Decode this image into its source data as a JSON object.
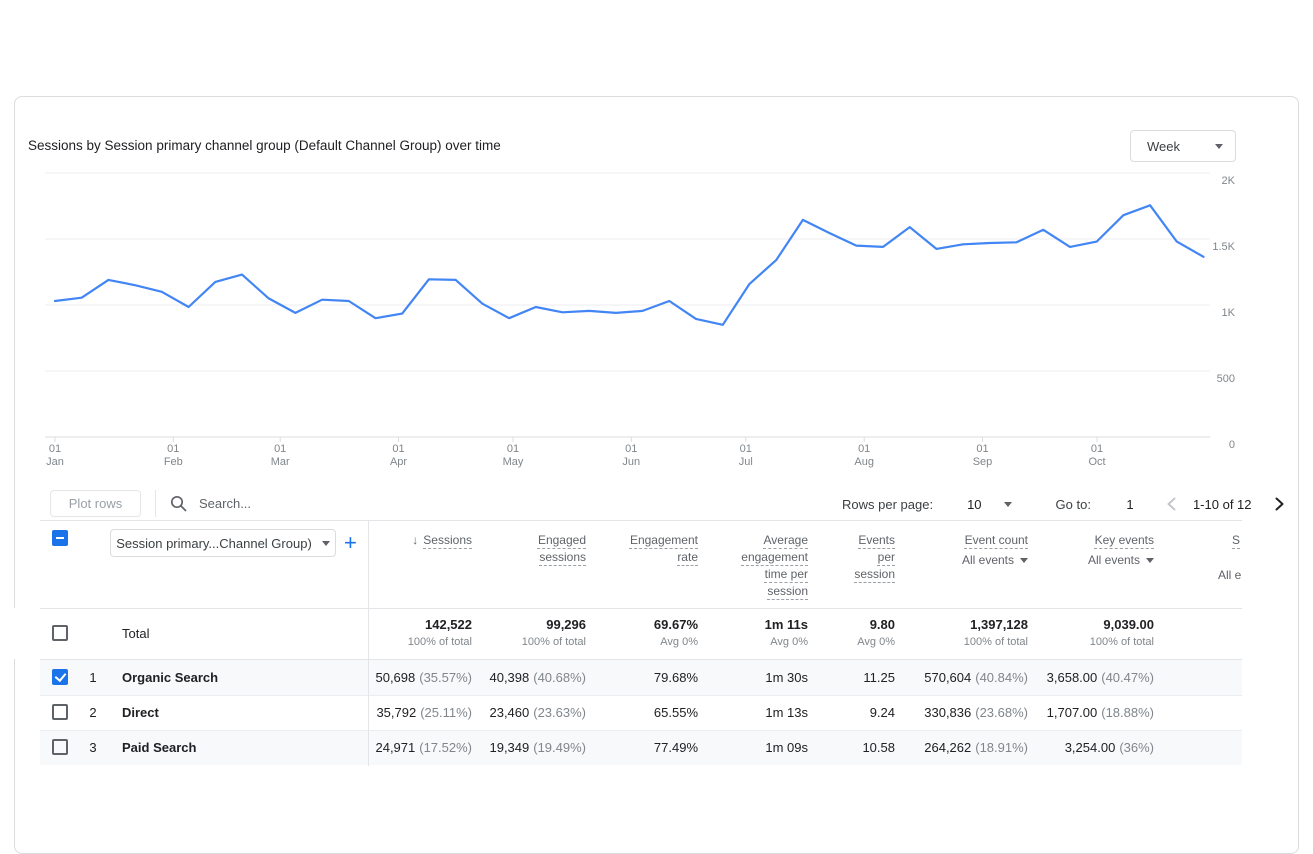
{
  "header": {
    "title": "Sessions by Session primary channel group (Default Channel Group) over time",
    "interval_value": "Week"
  },
  "chart_data": {
    "type": "line",
    "title": "Sessions by Session primary channel group (Default Channel Group) over time",
    "interval": "Week",
    "legend": "none",
    "grid": true,
    "ylim": [
      0,
      2000
    ],
    "yticks": [
      {
        "value": 0,
        "label": "0"
      },
      {
        "value": 500,
        "label": "500"
      },
      {
        "value": 1000,
        "label": "1K"
      },
      {
        "value": 1500,
        "label": "1.5K"
      },
      {
        "value": 2000,
        "label": "2K"
      }
    ],
    "x_ticks": [
      {
        "line1": "01",
        "line2": "Jan"
      },
      {
        "line1": "01",
        "line2": "Feb"
      },
      {
        "line1": "01",
        "line2": "Mar"
      },
      {
        "line1": "01",
        "line2": "Apr"
      },
      {
        "line1": "01",
        "line2": "May"
      },
      {
        "line1": "01",
        "line2": "Jun"
      },
      {
        "line1": "01",
        "line2": "Jul"
      },
      {
        "line1": "01",
        "line2": "Aug"
      },
      {
        "line1": "01",
        "line2": "Sep"
      },
      {
        "line1": "01",
        "line2": "Oct"
      }
    ],
    "series": [
      {
        "name": "Sessions",
        "color": "#4285f4",
        "x_unit": "week",
        "values": [
          1030,
          1055,
          1190,
          1150,
          1100,
          985,
          1175,
          1230,
          1050,
          940,
          1040,
          1030,
          900,
          935,
          1195,
          1190,
          1010,
          900,
          985,
          945,
          955,
          940,
          955,
          1030,
          895,
          850,
          1160,
          1340,
          1645,
          1545,
          1450,
          1440,
          1590,
          1425,
          1460,
          1470,
          1475,
          1570,
          1440,
          1480,
          1680,
          1755,
          1480,
          1365
        ]
      }
    ]
  },
  "toolbar": {
    "plot_rows": "Plot rows",
    "search_placeholder": "Search...",
    "rows_per_page_label": "Rows per page:",
    "rows_per_page_value": "10",
    "goto_label": "Go to:",
    "goto_value": "1",
    "range_label": "1-10 of 12"
  },
  "table": {
    "select_all_state": "indeterminate",
    "dimension_selector": "Session primary...Channel Group)",
    "columns": {
      "sessions": {
        "label": "Sessions",
        "sort_arrow": "↓"
      },
      "engaged_sessions": {
        "label": "Engaged sessions"
      },
      "engagement_rate": {
        "label": "Engagement rate"
      },
      "avg_engagement_time": {
        "label": "Average engagement time per session"
      },
      "events_per_session": {
        "label": "Events per session"
      },
      "event_count": {
        "label": "Event count",
        "filter": "All events"
      },
      "key_events": {
        "label": "Key events",
        "filter": "All events"
      },
      "clipped": {
        "label_fragment": "S",
        "filter_fragment": "All e"
      }
    },
    "total": {
      "label": "Total",
      "sessions_v": "142,522",
      "sessions_s": "100% of total",
      "engaged_v": "99,296",
      "engaged_s": "100% of total",
      "rate_v": "69.67%",
      "rate_s": "Avg 0%",
      "avg_time_v": "1m 11s",
      "avg_time_s": "Avg 0%",
      "events_per_v": "9.80",
      "events_per_s": "Avg 0%",
      "event_count_v": "1,397,128",
      "event_count_s": "100% of total",
      "key_events_v": "9,039.00",
      "key_events_s": "100% of total"
    },
    "rows": [
      {
        "rank": "1",
        "name": "Organic Search",
        "state": "checked",
        "sessions_v": "50,698",
        "sessions_p": "(35.57%)",
        "engaged_v": "40,398",
        "engaged_p": "(40.68%)",
        "rate": "79.68%",
        "avg_time": "1m 30s",
        "events_per": "11.25",
        "event_count_v": "570,604",
        "event_count_p": "(40.84%)",
        "key_events_v": "3,658.00",
        "key_events_p": "(40.47%)"
      },
      {
        "rank": "2",
        "name": "Direct",
        "state": "unchecked",
        "sessions_v": "35,792",
        "sessions_p": "(25.11%)",
        "engaged_v": "23,460",
        "engaged_p": "(23.63%)",
        "rate": "65.55%",
        "avg_time": "1m 13s",
        "events_per": "9.24",
        "event_count_v": "330,836",
        "event_count_p": "(23.68%)",
        "key_events_v": "1,707.00",
        "key_events_p": "(18.88%)"
      },
      {
        "rank": "3",
        "name": "Paid Search",
        "state": "unchecked",
        "sessions_v": "24,971",
        "sessions_p": "(17.52%)",
        "engaged_v": "19,349",
        "engaged_p": "(19.49%)",
        "rate": "77.49%",
        "avg_time": "1m 09s",
        "events_per": "10.58",
        "event_count_v": "264,262",
        "event_count_p": "(18.91%)",
        "key_events_v": "3,254.00",
        "key_events_p": "(36%)"
      }
    ]
  }
}
